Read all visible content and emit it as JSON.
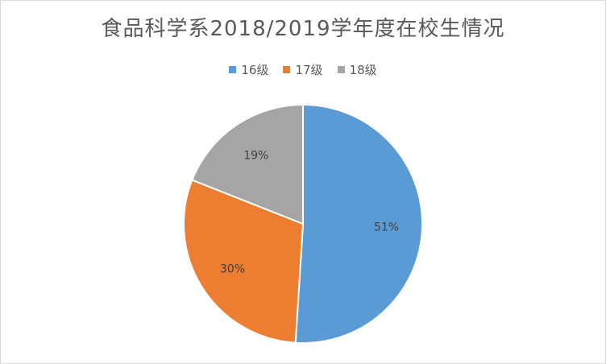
{
  "chart_data": {
    "type": "pie",
    "title": "食品科学系2018/2019学年度在校生情况",
    "categories": [
      "16级",
      "17级",
      "18级"
    ],
    "values": [
      51,
      30,
      19
    ],
    "labels": [
      "51%",
      "30%",
      "19%"
    ],
    "colors": [
      "#5b9bd5",
      "#ed7d31",
      "#a5a5a5"
    ],
    "legend_position": "top"
  }
}
